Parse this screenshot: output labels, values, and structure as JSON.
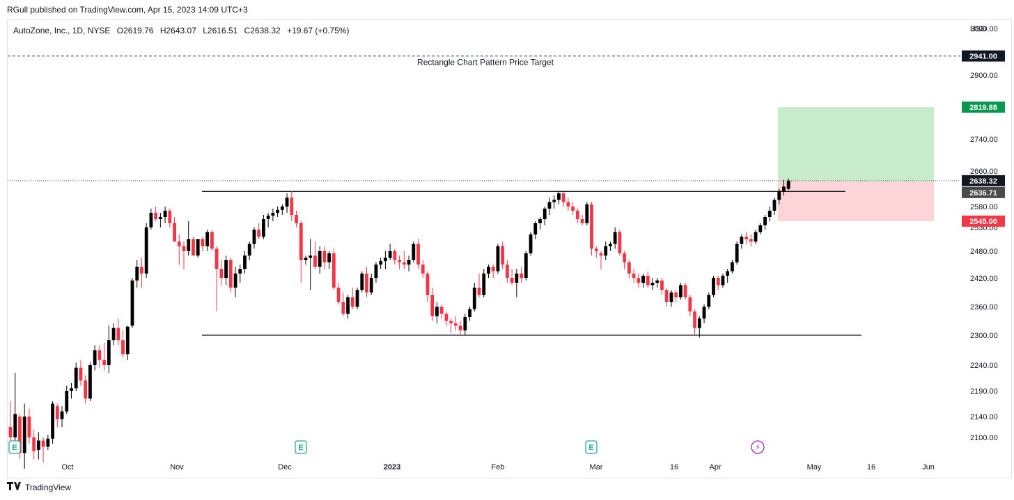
{
  "header": {
    "published_by": "RGull published on TradingView.com, Apr 15, 2023 14:09 UTC+3"
  },
  "footer": {
    "brand": "TradingView",
    "logo": "TV-logo-icon"
  },
  "chart_data": {
    "type": "candlestick",
    "symbol_line": {
      "name": "AutoZone, Inc., 1D, NYSE",
      "open_label": "O",
      "open": "2619.76",
      "high_label": "H",
      "high": "2643.07",
      "low_label": "L",
      "low": "2616.51",
      "close_label": "C",
      "close": "2638.32",
      "change": "+19.67 (+0.75%)"
    },
    "currency": "USD",
    "price_axis": [
      "3000.00",
      "2900.00",
      "2740.00",
      "2660.00",
      "2580.00",
      "2530.00",
      "2480.00",
      "2420.00",
      "2360.00",
      "2300.00",
      "2240.00",
      "2190.00",
      "2140.00",
      "2100.00"
    ],
    "time_axis": [
      {
        "label": "Oct",
        "bold": false
      },
      {
        "label": "Nov",
        "bold": false
      },
      {
        "label": "Dec",
        "bold": false
      },
      {
        "label": "2023",
        "bold": true
      },
      {
        "label": "Feb",
        "bold": false
      },
      {
        "label": "Mar",
        "bold": false
      },
      {
        "label": "16",
        "bold": false
      },
      {
        "label": "Apr",
        "bold": false
      },
      {
        "label": "May",
        "bold": false
      },
      {
        "label": "16",
        "bold": false
      },
      {
        "label": "Jun",
        "bold": false
      }
    ],
    "price_tags": {
      "target": "2941.00",
      "take_profit": "2819.88",
      "last_price": "2638.32",
      "entry": "2636.71",
      "stop_loss": "2545.00"
    },
    "annotations": {
      "target_line_label": "Rectangle Chart Pattern Price Target",
      "rectangle_top": 2614,
      "rectangle_bottom": 2300,
      "target_price": 2941,
      "position_entry": 2636.71,
      "position_take_profit": 2819.88,
      "position_stop": 2545
    },
    "events": [
      {
        "type": "earnings",
        "label": "E"
      },
      {
        "type": "earnings",
        "label": "E"
      },
      {
        "type": "earnings",
        "label": "E"
      },
      {
        "type": "dividend-split",
        "label": "⚡"
      }
    ],
    "colors": {
      "up": "#000000",
      "down": "#f23645",
      "take_profit_zone": "#c8ebcc",
      "stop_zone": "#fdd5d8",
      "tp_tag": "#089950",
      "stop_tag": "#f23645",
      "event": "#22ab94",
      "split": "#9c27b0"
    },
    "candles": [
      [
        2120,
        2170,
        2090,
        2100
      ],
      [
        2100,
        2225,
        2090,
        2145
      ],
      [
        2140,
        2145,
        2065,
        2075
      ],
      [
        2075,
        2165,
        2050,
        2140
      ],
      [
        2140,
        2155,
        2090,
        2100
      ],
      [
        2100,
        2115,
        2065,
        2078
      ],
      [
        2080,
        2110,
        2065,
        2095
      ],
      [
        2095,
        2100,
        2060,
        2085
      ],
      [
        2085,
        2105,
        2080,
        2098
      ],
      [
        2098,
        2170,
        2090,
        2165
      ],
      [
        2160,
        2165,
        2120,
        2135
      ],
      [
        2135,
        2160,
        2120,
        2150
      ],
      [
        2150,
        2200,
        2145,
        2190
      ],
      [
        2190,
        2205,
        2175,
        2195
      ],
      [
        2195,
        2245,
        2190,
        2235
      ],
      [
        2235,
        2250,
        2200,
        2210
      ],
      [
        2210,
        2220,
        2165,
        2175
      ],
      [
        2175,
        2245,
        2170,
        2240
      ],
      [
        2240,
        2280,
        2230,
        2270
      ],
      [
        2270,
        2280,
        2235,
        2250
      ],
      [
        2250,
        2285,
        2230,
        2240
      ],
      [
        2240,
        2320,
        2225,
        2290
      ],
      [
        2290,
        2325,
        2280,
        2315
      ],
      [
        2315,
        2335,
        2280,
        2290
      ],
      [
        2290,
        2310,
        2255,
        2262
      ],
      [
        2262,
        2320,
        2250,
        2318
      ],
      [
        2320,
        2420,
        2315,
        2415
      ],
      [
        2415,
        2460,
        2400,
        2445
      ],
      [
        2445,
        2465,
        2400,
        2430
      ],
      [
        2430,
        2540,
        2420,
        2530
      ],
      [
        2530,
        2575,
        2525,
        2565
      ],
      [
        2565,
        2580,
        2545,
        2550
      ],
      [
        2550,
        2565,
        2530,
        2555
      ],
      [
        2555,
        2580,
        2540,
        2570
      ],
      [
        2570,
        2575,
        2530,
        2540
      ],
      [
        2540,
        2555,
        2500,
        2500
      ],
      [
        2500,
        2515,
        2450,
        2490
      ],
      [
        2490,
        2500,
        2440,
        2480
      ],
      [
        2480,
        2545,
        2470,
        2505
      ],
      [
        2505,
        2510,
        2470,
        2470
      ],
      [
        2470,
        2505,
        2465,
        2505
      ],
      [
        2505,
        2510,
        2480,
        2490
      ],
      [
        2490,
        2525,
        2480,
        2520
      ],
      [
        2520,
        2525,
        2480,
        2485
      ],
      [
        2485,
        2490,
        2350,
        2440
      ],
      [
        2440,
        2460,
        2405,
        2420
      ],
      [
        2420,
        2470,
        2405,
        2460
      ],
      [
        2460,
        2465,
        2390,
        2400
      ],
      [
        2400,
        2445,
        2380,
        2430
      ],
      [
        2430,
        2450,
        2410,
        2440
      ],
      [
        2440,
        2480,
        2430,
        2470
      ],
      [
        2470,
        2500,
        2460,
        2495
      ],
      [
        2495,
        2530,
        2485,
        2525
      ],
      [
        2525,
        2540,
        2505,
        2510
      ],
      [
        2510,
        2560,
        2505,
        2550
      ],
      [
        2550,
        2565,
        2530,
        2558
      ],
      [
        2558,
        2575,
        2545,
        2565
      ],
      [
        2565,
        2580,
        2555,
        2572
      ],
      [
        2572,
        2585,
        2560,
        2580
      ],
      [
        2580,
        2610,
        2565,
        2600
      ],
      [
        2600,
        2615,
        2545,
        2560
      ],
      [
        2560,
        2570,
        2530,
        2540
      ],
      [
        2540,
        2545,
        2410,
        2460
      ],
      [
        2460,
        2470,
        2450,
        2465
      ],
      [
        2465,
        2505,
        2395,
        2470
      ],
      [
        2470,
        2500,
        2440,
        2445
      ],
      [
        2445,
        2490,
        2430,
        2480
      ],
      [
        2480,
        2490,
        2440,
        2455
      ],
      [
        2455,
        2480,
        2440,
        2475
      ],
      [
        2475,
        2485,
        2395,
        2400
      ],
      [
        2400,
        2410,
        2365,
        2370
      ],
      [
        2370,
        2390,
        2340,
        2345
      ],
      [
        2345,
        2385,
        2335,
        2380
      ],
      [
        2380,
        2400,
        2355,
        2360
      ],
      [
        2360,
        2400,
        2355,
        2395
      ],
      [
        2395,
        2435,
        2390,
        2430
      ],
      [
        2430,
        2445,
        2380,
        2390
      ],
      [
        2390,
        2430,
        2385,
        2420
      ],
      [
        2420,
        2455,
        2410,
        2450
      ],
      [
        2450,
        2465,
        2440,
        2458
      ],
      [
        2458,
        2480,
        2440,
        2465
      ],
      [
        2465,
        2495,
        2460,
        2480
      ],
      [
        2480,
        2485,
        2450,
        2460
      ],
      [
        2460,
        2470,
        2440,
        2455
      ],
      [
        2455,
        2480,
        2440,
        2450
      ],
      [
        2450,
        2470,
        2435,
        2460
      ],
      [
        2460,
        2500,
        2455,
        2495
      ],
      [
        2495,
        2505,
        2440,
        2450
      ],
      [
        2450,
        2460,
        2420,
        2430
      ],
      [
        2430,
        2435,
        2370,
        2385
      ],
      [
        2385,
        2400,
        2330,
        2340
      ],
      [
        2340,
        2370,
        2325,
        2360
      ],
      [
        2360,
        2365,
        2335,
        2345
      ],
      [
        2345,
        2350,
        2320,
        2330
      ],
      [
        2330,
        2335,
        2305,
        2325
      ],
      [
        2325,
        2340,
        2310,
        2320
      ],
      [
        2320,
        2330,
        2300,
        2310
      ],
      [
        2310,
        2345,
        2300,
        2338
      ],
      [
        2338,
        2360,
        2330,
        2355
      ],
      [
        2355,
        2410,
        2350,
        2400
      ],
      [
        2400,
        2430,
        2380,
        2385
      ],
      [
        2385,
        2440,
        2380,
        2430
      ],
      [
        2430,
        2450,
        2420,
        2445
      ],
      [
        2445,
        2450,
        2420,
        2435
      ],
      [
        2435,
        2495,
        2430,
        2490
      ],
      [
        2490,
        2500,
        2440,
        2450
      ],
      [
        2450,
        2460,
        2410,
        2420
      ],
      [
        2420,
        2440,
        2405,
        2410
      ],
      [
        2410,
        2440,
        2380,
        2430
      ],
      [
        2430,
        2445,
        2410,
        2420
      ],
      [
        2420,
        2480,
        2415,
        2475
      ],
      [
        2475,
        2520,
        2470,
        2515
      ],
      [
        2515,
        2545,
        2505,
        2540
      ],
      [
        2540,
        2555,
        2525,
        2550
      ],
      [
        2550,
        2580,
        2535,
        2575
      ],
      [
        2575,
        2600,
        2560,
        2590
      ],
      [
        2590,
        2605,
        2575,
        2595
      ],
      [
        2595,
        2615,
        2585,
        2610
      ],
      [
        2610,
        2612,
        2580,
        2590
      ],
      [
        2590,
        2600,
        2570,
        2580
      ],
      [
        2580,
        2590,
        2560,
        2570
      ],
      [
        2570,
        2575,
        2540,
        2550
      ],
      [
        2550,
        2560,
        2535,
        2540
      ],
      [
        2540,
        2590,
        2535,
        2585
      ],
      [
        2585,
        2590,
        2470,
        2485
      ],
      [
        2485,
        2490,
        2465,
        2480
      ],
      [
        2475,
        2480,
        2440,
        2470
      ],
      [
        2470,
        2500,
        2460,
        2490
      ],
      [
        2490,
        2500,
        2480,
        2495
      ],
      [
        2495,
        2530,
        2485,
        2520
      ],
      [
        2520,
        2525,
        2470,
        2475
      ],
      [
        2475,
        2480,
        2440,
        2455
      ],
      [
        2455,
        2460,
        2420,
        2430
      ],
      [
        2430,
        2440,
        2410,
        2420
      ],
      [
        2420,
        2430,
        2400,
        2410
      ],
      [
        2410,
        2430,
        2400,
        2425
      ],
      [
        2425,
        2435,
        2400,
        2405
      ],
      [
        2405,
        2420,
        2395,
        2410
      ],
      [
        2410,
        2420,
        2400,
        2415
      ],
      [
        2415,
        2420,
        2385,
        2395
      ],
      [
        2395,
        2400,
        2360,
        2370
      ],
      [
        2370,
        2395,
        2360,
        2390
      ],
      [
        2390,
        2395,
        2370,
        2380
      ],
      [
        2380,
        2410,
        2375,
        2405
      ],
      [
        2405,
        2410,
        2375,
        2380
      ],
      [
        2380,
        2385,
        2340,
        2350
      ],
      [
        2350,
        2355,
        2300,
        2315
      ],
      [
        2315,
        2340,
        2295,
        2335
      ],
      [
        2335,
        2365,
        2325,
        2360
      ],
      [
        2360,
        2390,
        2355,
        2385
      ],
      [
        2385,
        2425,
        2380,
        2420
      ],
      [
        2420,
        2425,
        2395,
        2405
      ],
      [
        2405,
        2430,
        2400,
        2425
      ],
      [
        2425,
        2440,
        2410,
        2435
      ],
      [
        2435,
        2460,
        2430,
        2455
      ],
      [
        2455,
        2500,
        2450,
        2495
      ],
      [
        2495,
        2515,
        2485,
        2510
      ],
      [
        2510,
        2520,
        2495,
        2505
      ],
      [
        2505,
        2515,
        2490,
        2500
      ],
      [
        2500,
        2525,
        2495,
        2520
      ],
      [
        2520,
        2540,
        2515,
        2535
      ],
      [
        2535,
        2560,
        2525,
        2555
      ],
      [
        2555,
        2580,
        2545,
        2570
      ],
      [
        2570,
        2600,
        2560,
        2595
      ],
      [
        2595,
        2620,
        2585,
        2615
      ],
      [
        2615,
        2640,
        2605,
        2625
      ],
      [
        2619.76,
        2643.07,
        2616.51,
        2638.32
      ]
    ]
  }
}
